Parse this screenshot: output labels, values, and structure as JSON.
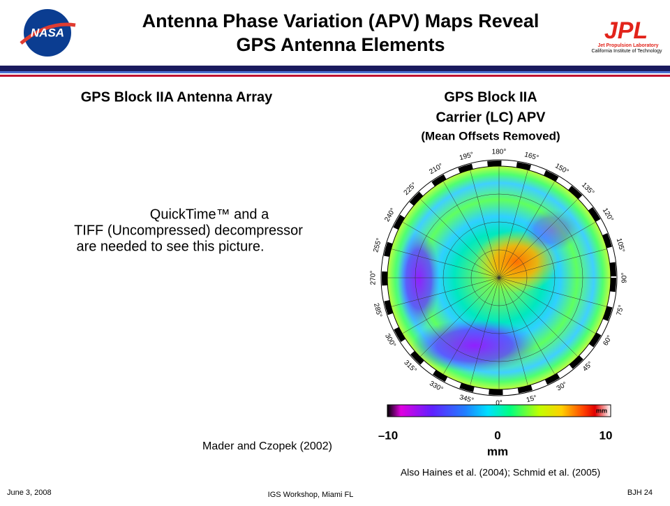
{
  "header": {
    "title_line1": "Antenna Phase Variation (APV) Maps Reveal",
    "title_line2": "GPS Antenna Elements",
    "nasa_logo": "NASA",
    "jpl_logo": "JPL",
    "jpl_sub1": "Jet Propulsion Laboratory",
    "jpl_sub2": "California Institute of Technology"
  },
  "left": {
    "heading": "GPS Block IIA Antenna Array",
    "placeholder": [
      "QuickTime™ and a",
      "TIFF (Uncompressed) decompressor",
      "are needed to see this picture."
    ],
    "credit": "Mader and Czopek (2002)"
  },
  "right": {
    "heading_line1": "GPS Block IIA",
    "heading_line2": "Carrier (LC) APV",
    "heading_line3": "(Mean Offsets Removed)",
    "azimuth_labels": [
      "0°",
      "15°",
      "30°",
      "45°",
      "60°",
      "75°",
      "90°",
      "105°",
      "120°",
      "135°",
      "150°",
      "165°",
      "180°",
      "195°",
      "210°",
      "225°",
      "240°",
      "255°",
      "270°",
      "285°",
      "300°",
      "315°",
      "330°",
      "345°"
    ],
    "colorbar_unit_inner": "mm",
    "colorbar_ticks": [
      "–10",
      "0",
      "10"
    ],
    "colorbar_unit": "mm",
    "credit": "Also Haines et al. (2004); Schmid et al. (2005)"
  },
  "footer": {
    "date": "June 3, 2008",
    "venue": "IGS Workshop, Miami FL",
    "page": "BJH 24"
  }
}
